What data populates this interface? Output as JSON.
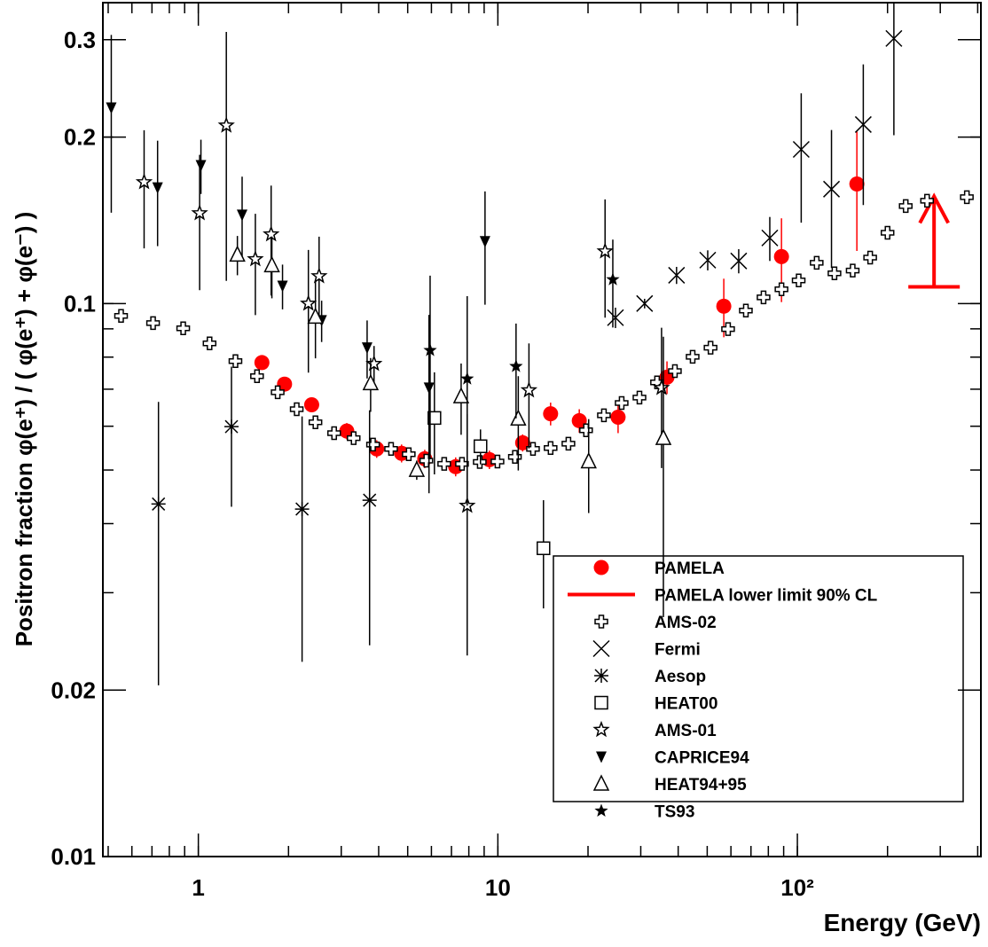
{
  "chart_data": {
    "type": "scatter",
    "x_label": "Energy (GeV)",
    "y_label": "Positron fraction φ(e⁺) / ( φ(e⁺) + φ(e⁻) )",
    "xlog": true,
    "ylog": true,
    "xlim": [
      0.48,
      410
    ],
    "ylim": [
      0.01,
      0.35
    ],
    "xticks": [
      1,
      10,
      {
        "value": 100,
        "label": "10²"
      }
    ],
    "yticks": [
      0.01,
      0.02,
      0.1,
      0.2,
      0.3
    ],
    "legend": "lower right",
    "series": [
      {
        "name": "PAMELA",
        "color": "#ff0000",
        "marker": "circle",
        "x": [
          1.63,
          1.94,
          2.39,
          3.13,
          3.94,
          4.77,
          5.7,
          7.23,
          9.37,
          12.1,
          15.0,
          18.7,
          25.2,
          36.7,
          56.8,
          88.5,
          158
        ],
        "values": [
          0.0782,
          0.0715,
          0.0656,
          0.0588,
          0.0546,
          0.0536,
          0.0524,
          0.0507,
          0.0522,
          0.056,
          0.0632,
          0.0614,
          0.0623,
          0.0736,
          0.0989,
          0.1216,
          0.1645
        ],
        "errors": [
          0.002,
          0.002,
          0.002,
          0.002,
          0.002,
          0.002,
          0.002,
          0.002,
          0.002,
          0.002,
          0.003,
          0.003,
          0.004,
          0.005,
          0.012,
          0.021,
          0.04
        ]
      },
      {
        "name": "PAMELA lower limit 90% CL",
        "color": "#ff0000",
        "marker": "limit",
        "x": [
          286
        ],
        "values": [
          0.1072
        ]
      },
      {
        "name": "AMS-02",
        "color": "#000000",
        "marker": "cross",
        "x": [
          0.552,
          0.706,
          0.89,
          1.09,
          1.33,
          1.57,
          1.84,
          2.13,
          2.46,
          2.84,
          3.3,
          3.83,
          4.4,
          5.04,
          5.77,
          6.62,
          7.59,
          8.7,
          9.97,
          11.4,
          13.1,
          15.0,
          17.2,
          19.7,
          22.6,
          25.9,
          29.7,
          34.0,
          39.0,
          44.7,
          51.3,
          58.7,
          67.3,
          77.1,
          88.5,
          101,
          116,
          133,
          153,
          175,
          200,
          230,
          271,
          368
        ],
        "values": [
          0.095,
          0.0922,
          0.0902,
          0.0847,
          0.0787,
          0.0739,
          0.0691,
          0.0644,
          0.061,
          0.0583,
          0.0571,
          0.0556,
          0.0546,
          0.0534,
          0.052,
          0.0513,
          0.0513,
          0.0517,
          0.0518,
          0.0528,
          0.0546,
          0.0548,
          0.0558,
          0.059,
          0.0628,
          0.0661,
          0.0676,
          0.072,
          0.0755,
          0.0801,
          0.0832,
          0.0899,
          0.0971,
          0.1026,
          0.1061,
          0.1101,
          0.1185,
          0.1134,
          0.1147,
          0.1211,
          0.1343,
          0.1501,
          0.1534,
          0.1557
        ]
      },
      {
        "name": "Fermi",
        "color": "#000000",
        "marker": "x",
        "x": [
          24.7,
          30.9,
          39.5,
          50.2,
          63.7,
          80.9,
          103,
          130,
          166,
          210
        ],
        "values": [
          0.0943,
          0.1,
          0.1125,
          0.1198,
          0.1194,
          0.1314,
          0.19,
          0.161,
          0.2107,
          0.3015
        ],
        "errors": [
          0.004,
          0.002,
          0.004,
          0.005,
          0.006,
          0.012,
          0.05,
          0.045,
          0.06,
          0.1
        ]
      },
      {
        "name": "Aesop",
        "color": "#000000",
        "marker": "asterisk",
        "x": [
          0.736,
          1.29,
          2.22,
          3.73
        ],
        "values": [
          0.0434,
          0.0599,
          0.0425,
          0.0441
        ],
        "errors": [
          0.023,
          0.017,
          0.02,
          0.02
        ]
      },
      {
        "name": "HEAT00",
        "color": "#000000",
        "marker": "square",
        "x": [
          6.14,
          8.75,
          14.2
        ],
        "values": [
          0.0621,
          0.0552,
          0.0361
        ],
        "errors": [
          0.013,
          0.004,
          0.008
        ]
      },
      {
        "name": "AMS-01",
        "color": "#000000",
        "marker": "star-open",
        "x": [
          0.659,
          1.01,
          1.24,
          1.55,
          1.75,
          2.33,
          2.53,
          3.86,
          7.9,
          12.7,
          22.8,
          35.2
        ],
        "values": [
          0.1658,
          0.1457,
          0.2099,
          0.1203,
          0.1334,
          0.1,
          0.1121,
          0.0778,
          0.0431,
          0.0697,
          0.1243,
          0.0704
        ],
        "errors": [
          0.04,
          0.04,
          0.1,
          0.025,
          0.03,
          0.025,
          0.02,
          0.006,
          0.02,
          0.015,
          0.03,
          0.02
        ]
      },
      {
        "name": "CAPRICE94",
        "color": "#000000",
        "marker": "triangle-down",
        "x": [
          0.512,
          0.731,
          1.02,
          1.4,
          1.91,
          2.58,
          3.66,
          5.89,
          9.06
        ],
        "values": [
          0.226,
          0.162,
          0.1778,
          0.1446,
          0.1076,
          0.0932,
          0.0832,
          0.0704,
          0.1295
        ],
        "errors": [
          0.08,
          0.035,
          0.02,
          0.025,
          0.01,
          0.008,
          0.01,
          0.025,
          0.03
        ]
      },
      {
        "name": "HEAT94+95",
        "color": "#000000",
        "marker": "triangle-up-open",
        "x": [
          1.35,
          1.76,
          2.46,
          3.76,
          5.36,
          7.54,
          11.7,
          20.1,
          35.7
        ],
        "values": [
          0.1225,
          0.1172,
          0.0946,
          0.0717,
          0.05,
          0.0679,
          0.0619,
          0.0518,
          0.0571
        ],
        "errors": [
          0.01,
          0.015,
          0.015,
          0.008,
          0.002,
          0.01,
          0.012,
          0.01,
          0.03
        ]
      },
      {
        "name": "TS93",
        "color": "#000000",
        "marker": "star",
        "x": [
          5.94,
          7.9,
          11.5,
          24.2
        ],
        "values": [
          0.0823,
          0.0731,
          0.077,
          0.1105
        ],
        "errors": [
          0.03,
          0.03,
          0.015,
          0.02
        ]
      }
    ]
  }
}
